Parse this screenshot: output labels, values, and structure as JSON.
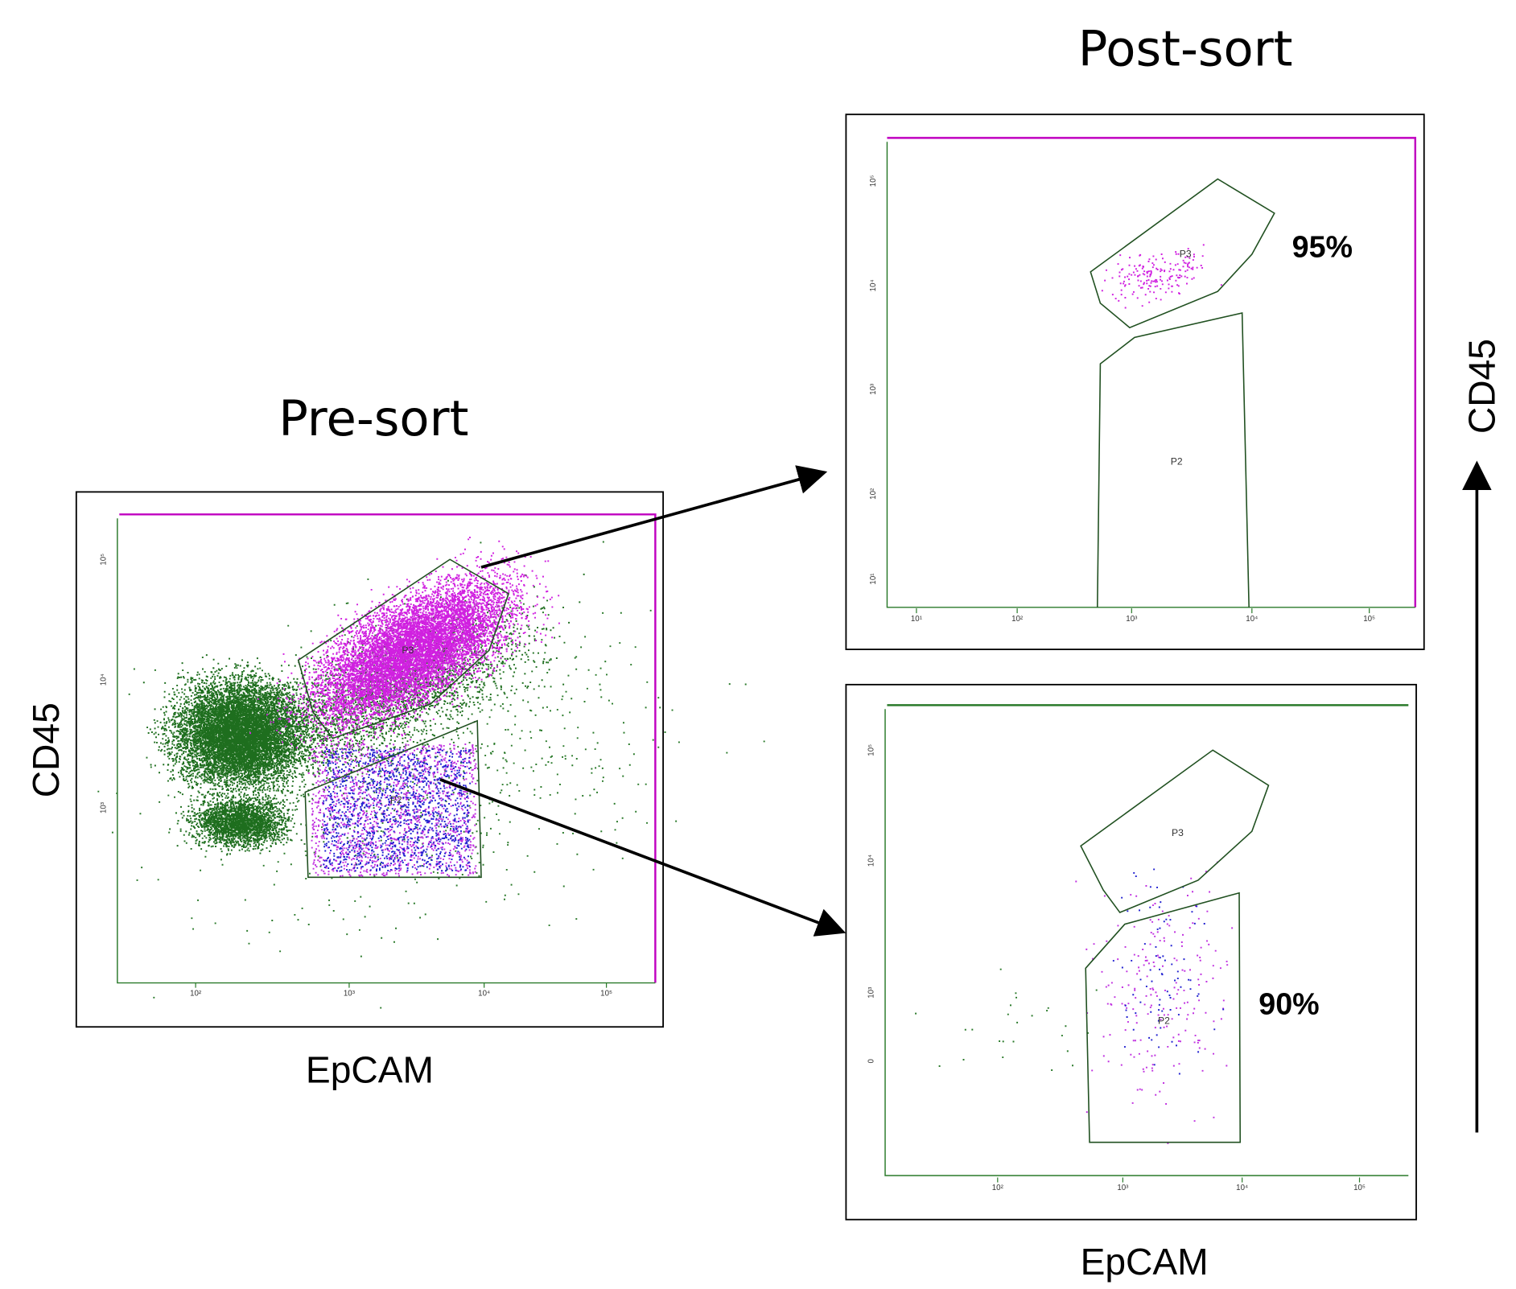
{
  "pre_sort": {
    "title": "Pre-sort",
    "y_label": "CD45",
    "x_label": "EpCAM",
    "gates": [
      "P3",
      "P2"
    ],
    "x_ticks": [
      "10²",
      "10³",
      "10⁴",
      "10⁵"
    ],
    "y_ticks": [
      "10⁵",
      "10⁴",
      "10³"
    ]
  },
  "post_sort": {
    "title": "Post-sort",
    "y_label": "CD45",
    "x_label": "EpCAM",
    "plots": [
      {
        "gates": [
          "P3",
          "P2"
        ],
        "purity": "95%",
        "x_ticks": [
          "10¹",
          "10²",
          "10³",
          "10⁴",
          "10⁵"
        ],
        "y_ticks": [
          "10⁵",
          "10⁴",
          "10³",
          "10²",
          "10¹"
        ]
      },
      {
        "gates": [
          "P3",
          "P2"
        ],
        "purity": "90%",
        "x_ticks": [
          "10²",
          "10³",
          "10⁴",
          "10⁵"
        ],
        "y_ticks": [
          "10⁵",
          "10⁴",
          "10³",
          "0"
        ]
      }
    ]
  }
}
